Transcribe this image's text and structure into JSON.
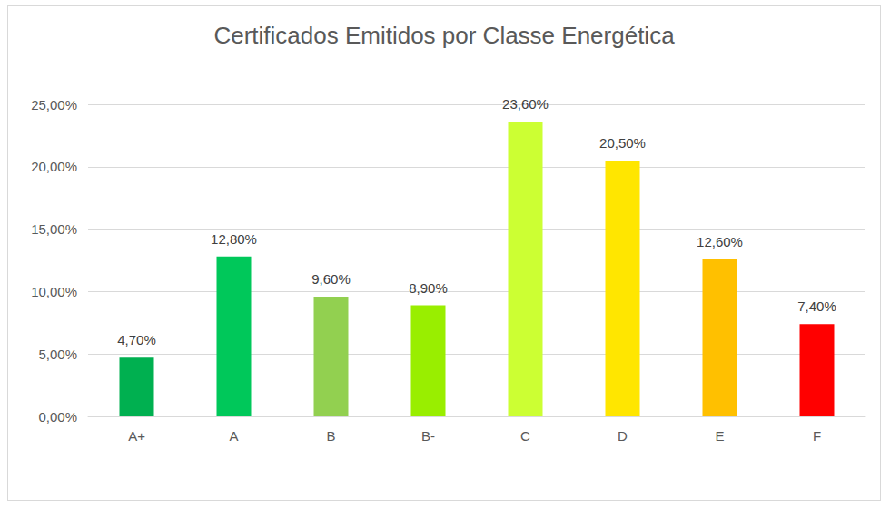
{
  "chart_data": {
    "type": "bar",
    "title": "Certificados Emitidos por Classe Energética",
    "categories": [
      "A+",
      "A",
      "B",
      "B-",
      "C",
      "D",
      "E",
      "F"
    ],
    "values": [
      4.7,
      12.8,
      9.6,
      8.9,
      23.6,
      20.5,
      12.6,
      7.4
    ],
    "value_labels": [
      "4,70%",
      "12,80%",
      "9,60%",
      "8,90%",
      "23,60%",
      "20,50%",
      "12,60%",
      "7,40%"
    ],
    "colors": [
      "#00b050",
      "#00c85a",
      "#92d050",
      "#99ee00",
      "#ccff33",
      "#ffe600",
      "#ffc000",
      "#ff0000"
    ],
    "ylim": [
      0,
      25
    ],
    "yticks": [
      {
        "value": 0,
        "label": "0,00%"
      },
      {
        "value": 5,
        "label": "5,00%"
      },
      {
        "value": 10,
        "label": "10,00%"
      },
      {
        "value": 15,
        "label": "15,00%"
      },
      {
        "value": 20,
        "label": "20,00%"
      },
      {
        "value": 25,
        "label": "25,00%"
      }
    ],
    "grid": true,
    "data_labels": true
  }
}
